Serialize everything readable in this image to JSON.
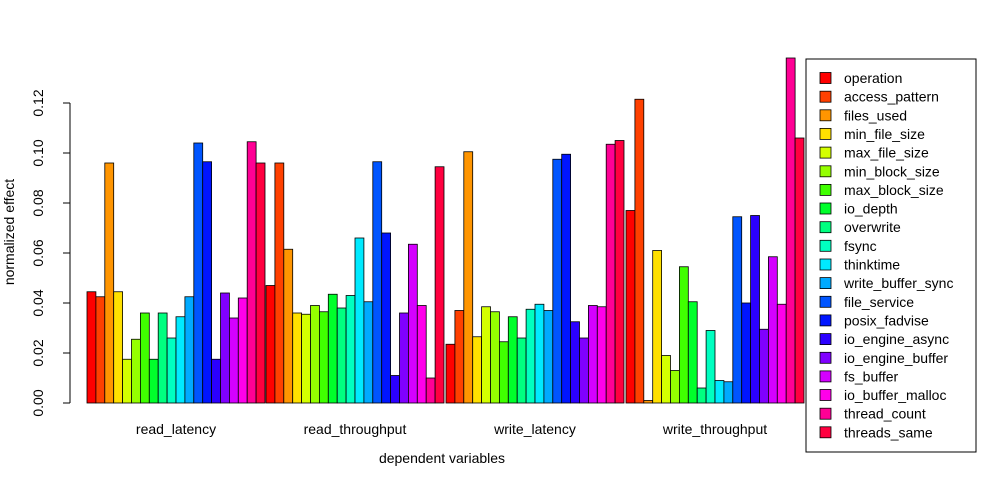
{
  "chart_data": {
    "type": "bar",
    "title": "",
    "xlabel": "dependent variables",
    "ylabel": "normalized effect",
    "ylim": [
      0,
      0.14
    ],
    "yticks": [
      0.0,
      0.02,
      0.04,
      0.06,
      0.08,
      0.1,
      0.12
    ],
    "ytick_labels": [
      "0.00",
      "0.02",
      "0.04",
      "0.06",
      "0.08",
      "0.10",
      "0.12"
    ],
    "grid": false,
    "legend_position": "right",
    "categories": [
      "read_latency",
      "read_throughput",
      "write_latency",
      "write_throughput"
    ],
    "series": [
      {
        "name": "operation",
        "color": "#FF0000",
        "values": [
          0.0445,
          0.047,
          0.0235,
          0.077
        ]
      },
      {
        "name": "access_pattern",
        "color": "#FF4000",
        "values": [
          0.0425,
          0.096,
          0.037,
          0.1215
        ]
      },
      {
        "name": "files_used",
        "color": "#FF9500",
        "values": [
          0.096,
          0.0615,
          0.1005,
          0.001
        ]
      },
      {
        "name": "min_file_size",
        "color": "#FFE000",
        "values": [
          0.0445,
          0.036,
          0.0265,
          0.061
        ]
      },
      {
        "name": "max_file_size",
        "color": "#D4FF00",
        "values": [
          0.0175,
          0.0355,
          0.0385,
          0.019
        ]
      },
      {
        "name": "min_block_size",
        "color": "#95FF00",
        "values": [
          0.0255,
          0.039,
          0.0365,
          0.013
        ]
      },
      {
        "name": "max_block_size",
        "color": "#40FF00",
        "values": [
          0.036,
          0.0365,
          0.0245,
          0.0545
        ]
      },
      {
        "name": "io_depth",
        "color": "#00FF2B",
        "values": [
          0.0175,
          0.0435,
          0.0345,
          0.0405
        ]
      },
      {
        "name": "overwrite",
        "color": "#00FF80",
        "values": [
          0.036,
          0.038,
          0.026,
          0.006
        ]
      },
      {
        "name": "fsync",
        "color": "#00FFC0",
        "values": [
          0.026,
          0.043,
          0.0375,
          0.029
        ]
      },
      {
        "name": "thinktime",
        "color": "#00EAFF",
        "values": [
          0.0345,
          0.066,
          0.0395,
          0.009
        ]
      },
      {
        "name": "write_buffer_sync",
        "color": "#00AAFF",
        "values": [
          0.0425,
          0.0405,
          0.037,
          0.0085
        ]
      },
      {
        "name": "file_service",
        "color": "#0055FF",
        "values": [
          0.104,
          0.0965,
          0.0975,
          0.0745
        ]
      },
      {
        "name": "posix_fadvise",
        "color": "#0015FF",
        "values": [
          0.0965,
          0.068,
          0.0995,
          0.04
        ]
      },
      {
        "name": "io_engine_async",
        "color": "#2B00FF",
        "values": [
          0.0175,
          0.011,
          0.0325,
          0.075
        ]
      },
      {
        "name": "io_engine_buffer",
        "color": "#8000FF",
        "values": [
          0.044,
          0.036,
          0.026,
          0.0295
        ]
      },
      {
        "name": "fs_buffer",
        "color": "#D400FF",
        "values": [
          0.034,
          0.0635,
          0.039,
          0.0585
        ]
      },
      {
        "name": "io_buffer_malloc",
        "color": "#FF00EA",
        "values": [
          0.042,
          0.039,
          0.0385,
          0.0395
        ]
      },
      {
        "name": "thread_count",
        "color": "#FF0095",
        "values": [
          0.1045,
          0.01,
          0.1035,
          0.138
        ]
      },
      {
        "name": "threads_same",
        "color": "#FF0040",
        "values": [
          0.096,
          0.0945,
          0.105,
          0.106
        ]
      }
    ]
  }
}
